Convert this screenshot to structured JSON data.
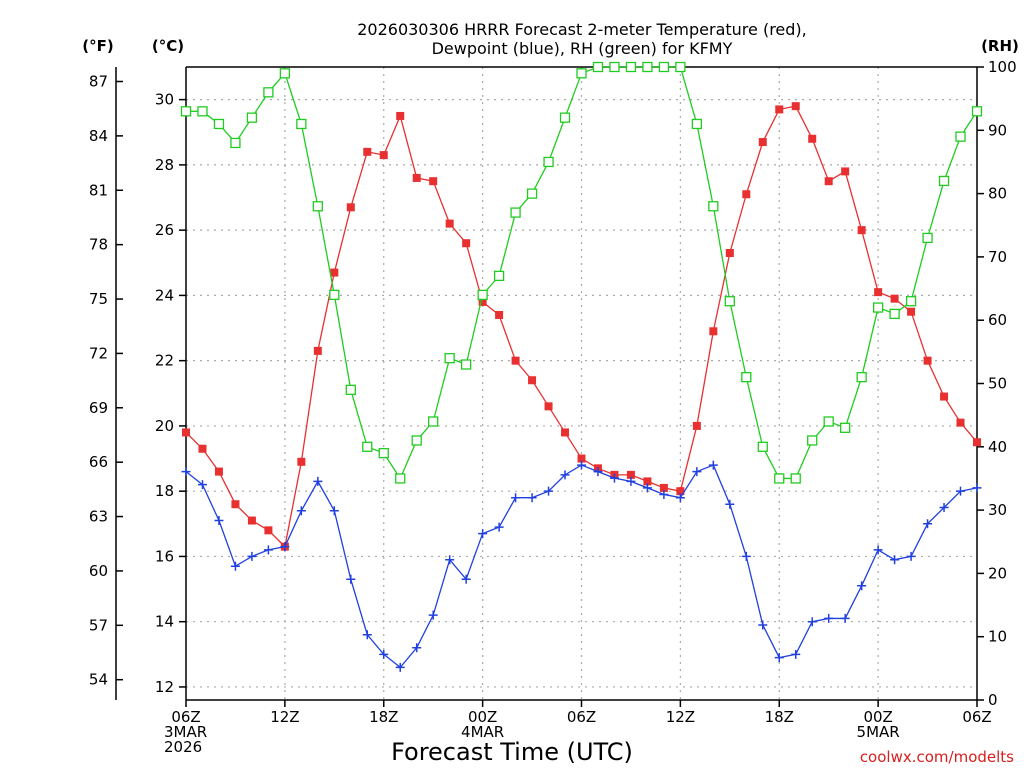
{
  "chart_data": {
    "type": "line",
    "title_lines": [
      "2026030306 HRRR Forecast 2-meter Temperature (red),",
      "Dewpoint (blue), RH (green) for KFMY"
    ],
    "unit_labels": {
      "fahrenheit": "(°F)",
      "celsius": "(°C)",
      "rh": "(RH)"
    },
    "xlabel": "Forecast Time (UTC)",
    "credit": "coolwx.com/modelts",
    "x_hours_range": [
      0,
      48
    ],
    "x_ticks": [
      {
        "hour": 0,
        "lines": [
          "06Z",
          "3MAR",
          "2026"
        ]
      },
      {
        "hour": 6,
        "lines": [
          "12Z"
        ]
      },
      {
        "hour": 12,
        "lines": [
          "18Z"
        ]
      },
      {
        "hour": 18,
        "lines": [
          "00Z",
          "4MAR"
        ]
      },
      {
        "hour": 24,
        "lines": [
          "06Z"
        ]
      },
      {
        "hour": 30,
        "lines": [
          "12Z"
        ]
      },
      {
        "hour": 36,
        "lines": [
          "18Z"
        ]
      },
      {
        "hour": 42,
        "lines": [
          "00Z",
          "5MAR"
        ]
      },
      {
        "hour": 48,
        "lines": [
          "06Z"
        ]
      }
    ],
    "y_celsius": {
      "range": [
        11.6,
        31.0
      ],
      "ticks": [
        12,
        14,
        16,
        18,
        20,
        22,
        24,
        26,
        28,
        30
      ]
    },
    "y_fahrenheit": {
      "range": [
        52.88,
        87.8
      ],
      "ticks": [
        54,
        57,
        60,
        63,
        66,
        69,
        72,
        75,
        78,
        81,
        84,
        87
      ]
    },
    "y_rh": {
      "range": [
        0,
        100
      ],
      "ticks": [
        0,
        10,
        20,
        30,
        40,
        50,
        60,
        70,
        80,
        90,
        100
      ]
    },
    "grid": true,
    "series": [
      {
        "name": "Temperature",
        "unit": "celsius",
        "color": "#e83030",
        "marker": "filled-square",
        "values": [
          19.8,
          19.3,
          18.6,
          17.6,
          17.1,
          16.8,
          16.3,
          18.9,
          22.3,
          24.7,
          26.7,
          28.4,
          28.3,
          29.5,
          27.6,
          27.5,
          26.2,
          25.6,
          23.8,
          23.4,
          22.0,
          21.4,
          20.6,
          19.8,
          19.0,
          18.7,
          18.5,
          18.5,
          18.3,
          18.1,
          18.0,
          20.0,
          22.9,
          25.3,
          27.1,
          28.7,
          29.7,
          29.8,
          28.8,
          27.5,
          27.8,
          26.0,
          24.1,
          23.9,
          23.5,
          22.0,
          20.9,
          20.1,
          19.5
        ]
      },
      {
        "name": "Dewpoint",
        "unit": "celsius",
        "color": "#2040e0",
        "marker": "plus",
        "values": [
          18.6,
          18.2,
          17.1,
          15.7,
          16.0,
          16.2,
          16.3,
          17.4,
          18.3,
          17.4,
          15.3,
          13.6,
          13.0,
          12.6,
          13.2,
          14.2,
          15.9,
          15.3,
          16.7,
          16.9,
          17.8,
          17.8,
          18.0,
          18.5,
          18.8,
          18.6,
          18.4,
          18.3,
          18.1,
          17.9,
          17.8,
          18.6,
          18.8,
          17.6,
          16.0,
          13.9,
          12.9,
          13.0,
          14.0,
          14.1,
          14.1,
          15.1,
          16.2,
          15.9,
          16.0,
          17.0,
          17.5,
          18.0,
          18.1
        ]
      },
      {
        "name": "Relative Humidity",
        "unit": "rh",
        "color": "#20cc20",
        "marker": "open-square",
        "values": [
          93,
          93,
          91,
          88,
          92,
          96,
          99,
          91,
          78,
          64,
          49,
          40,
          39,
          35,
          41,
          44,
          54,
          53,
          64,
          67,
          77,
          80,
          85,
          92,
          99,
          100,
          100,
          100,
          100,
          100,
          100,
          91,
          78,
          63,
          51,
          40,
          35,
          35,
          41,
          44,
          43,
          51,
          62,
          61,
          63,
          73,
          82,
          89,
          93
        ]
      }
    ]
  }
}
